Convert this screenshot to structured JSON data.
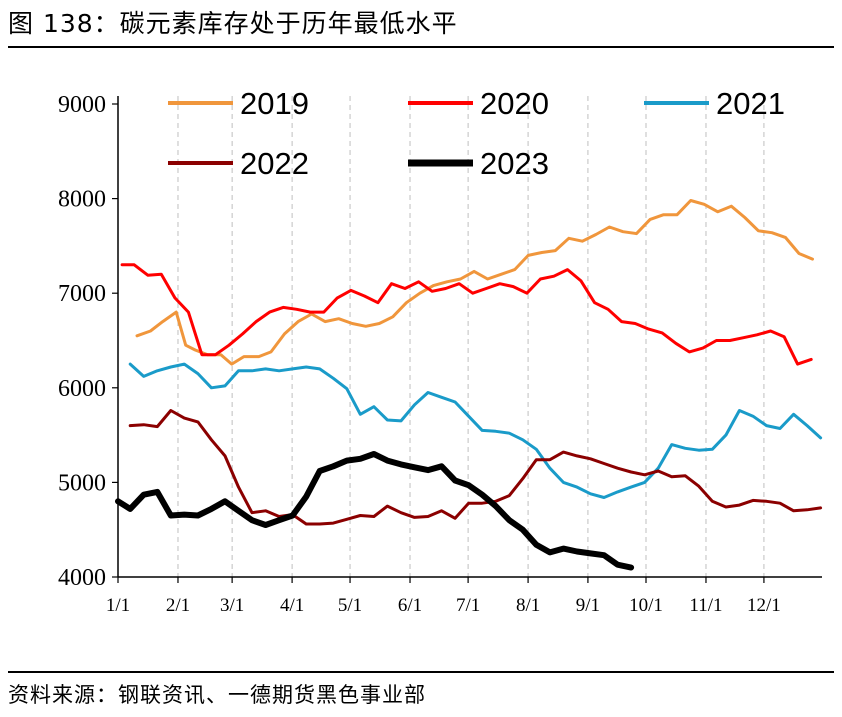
{
  "title": "图 138：碳元素库存处于历年最低水平",
  "source": "资料来源：钢联资讯、一德期货黑色事业部",
  "chart_data": {
    "type": "line",
    "xlabel": "",
    "ylabel": "",
    "x_domain": [
      0,
      52
    ],
    "ylim": [
      4000,
      9000
    ],
    "y_ticks": [
      4000,
      5000,
      6000,
      7000,
      8000,
      9000
    ],
    "x_ticks": [
      {
        "label": "1/1",
        "week": 0
      },
      {
        "label": "2/1",
        "week": 4.43
      },
      {
        "label": "3/1",
        "week": 8.43
      },
      {
        "label": "4/1",
        "week": 12.86
      },
      {
        "label": "5/1",
        "week": 17.14
      },
      {
        "label": "6/1",
        "week": 21.57
      },
      {
        "label": "7/1",
        "week": 25.86
      },
      {
        "label": "8/1",
        "week": 30.29
      },
      {
        "label": "9/1",
        "week": 34.71
      },
      {
        "label": "10/1",
        "week": 39
      },
      {
        "label": "11/1",
        "week": 43.43
      },
      {
        "label": "12/1",
        "week": 47.71
      }
    ],
    "grid": "vertical dashed",
    "legend": "top",
    "series": [
      {
        "name": "2019",
        "color": "#F0963C",
        "width": 3,
        "x": [
          1.4,
          2.4,
          3.3,
          4.3,
          5,
          5.7,
          6.6,
          7.6,
          8.4,
          9.3,
          10.4,
          11.3,
          12.3,
          13.3,
          14.3,
          15.3,
          16.3,
          17.3,
          18.3,
          19.3,
          20.3,
          21.3,
          22.3,
          23.3,
          24.3,
          25.3,
          26.3,
          27.3,
          28.3,
          29.3,
          30.3,
          31.3,
          32.3,
          33.3,
          34.3,
          35.3,
          36.3,
          37.3,
          38.3,
          39.3,
          40.3,
          41.3,
          42.3,
          43.3,
          44.3,
          45.3,
          46.3,
          47.3,
          48.3,
          49.3,
          50.3,
          51.3
        ],
        "values": [
          6550,
          6600,
          6700,
          6800,
          6450,
          6400,
          6350,
          6350,
          6250,
          6330,
          6330,
          6380,
          6570,
          6700,
          6780,
          6700,
          6730,
          6680,
          6650,
          6680,
          6750,
          6900,
          7000,
          7080,
          7120,
          7150,
          7230,
          7150,
          7200,
          7250,
          7400,
          7430,
          7450,
          7580,
          7550,
          7620,
          7700,
          7650,
          7630,
          7780,
          7830,
          7830,
          7980,
          7940,
          7860,
          7920,
          7800,
          7660,
          7640,
          7590,
          7420,
          7360
        ]
      },
      {
        "name": "2020",
        "color": "#FF0000",
        "width": 3,
        "x": [
          0.3,
          1.2,
          2.2,
          3.2,
          4.2,
          5.2,
          6.2,
          7.2,
          8.2,
          9.2,
          10.2,
          11.2,
          12.2,
          13.2,
          14.2,
          15.2,
          16.2,
          17.2,
          18.2,
          19.2,
          20.2,
          21.2,
          22.2,
          23.2,
          24.2,
          25.2,
          26.2,
          27.2,
          28.2,
          29.2,
          30.2,
          31.2,
          32.2,
          33.2,
          34.2,
          35.2,
          36.2,
          37.2,
          38.2,
          39.2,
          40.2,
          41.2,
          42.2,
          43.2,
          44.2,
          45.2,
          46.2,
          47.2,
          48.2,
          49.2,
          50.2,
          51.2
        ],
        "values": [
          7300,
          7300,
          7190,
          7200,
          6950,
          6800,
          6350,
          6350,
          6450,
          6570,
          6700,
          6800,
          6850,
          6830,
          6800,
          6800,
          6950,
          7030,
          6970,
          6900,
          7100,
          7050,
          7120,
          7020,
          7050,
          7100,
          7000,
          7050,
          7100,
          7070,
          7000,
          7150,
          7180,
          7250,
          7130,
          6900,
          6830,
          6700,
          6680,
          6620,
          6580,
          6470,
          6380,
          6420,
          6500,
          6500,
          6530,
          6560,
          6600,
          6540,
          6250,
          6300
        ]
      },
      {
        "name": "2021",
        "color": "#1A9BC9",
        "width": 3,
        "x": [
          0.9,
          1.9,
          2.9,
          3.9,
          4.9,
          5.9,
          6.9,
          7.9,
          8.9,
          9.9,
          10.9,
          11.9,
          12.9,
          13.9,
          14.9,
          15.9,
          16.9,
          17.9,
          18.9,
          19.9,
          20.9,
          21.9,
          22.9,
          23.9,
          24.9,
          25.9,
          26.9,
          27.9,
          28.9,
          29.9,
          30.9,
          31.9,
          32.9,
          33.9,
          34.9,
          35.9,
          36.9,
          37.9,
          38.9,
          39.9,
          40.9,
          41.9,
          42.9,
          43.9,
          44.9,
          45.9,
          46.9,
          47.9,
          48.9,
          49.9,
          50.9,
          51.9
        ],
        "values": [
          6250,
          6120,
          6180,
          6220,
          6250,
          6150,
          6000,
          6020,
          6180,
          6180,
          6200,
          6180,
          6200,
          6220,
          6200,
          6100,
          5990,
          5720,
          5800,
          5660,
          5650,
          5820,
          5950,
          5900,
          5850,
          5700,
          5550,
          5540,
          5520,
          5450,
          5350,
          5150,
          5000,
          4950,
          4880,
          4840,
          4900,
          4950,
          5000,
          5150,
          5400,
          5360,
          5340,
          5350,
          5500,
          5760,
          5700,
          5600,
          5570,
          5720,
          5600,
          5470
        ]
      },
      {
        "name": "2022",
        "color": "#8B0000",
        "width": 3,
        "x": [
          0.9,
          1.9,
          2.9,
          3.9,
          4.9,
          5.9,
          6.9,
          7.9,
          8.9,
          9.9,
          10.9,
          11.9,
          12.9,
          13.9,
          14.9,
          15.9,
          16.9,
          17.9,
          18.9,
          19.9,
          20.9,
          21.9,
          22.9,
          23.9,
          24.9,
          25.9,
          26.9,
          27.9,
          28.9,
          29.9,
          30.9,
          31.9,
          32.9,
          33.9,
          34.9,
          35.9,
          36.9,
          37.9,
          38.9,
          39.9,
          40.9,
          41.9,
          42.9,
          43.9,
          44.9,
          45.9,
          46.9,
          47.9,
          48.9,
          49.9,
          50.9,
          51.9
        ],
        "values": [
          5600,
          5610,
          5590,
          5760,
          5680,
          5640,
          5450,
          5280,
          4950,
          4680,
          4700,
          4640,
          4660,
          4560,
          4560,
          4570,
          4610,
          4650,
          4640,
          4750,
          4680,
          4630,
          4640,
          4700,
          4620,
          4780,
          4780,
          4800,
          4860,
          5040,
          5240,
          5240,
          5320,
          5280,
          5250,
          5200,
          5150,
          5110,
          5080,
          5120,
          5060,
          5070,
          4960,
          4800,
          4740,
          4760,
          4810,
          4800,
          4780,
          4700,
          4710,
          4730
        ]
      },
      {
        "name": "2023",
        "color": "#000000",
        "width": 6,
        "x": [
          0,
          0.9,
          1.9,
          2.9,
          3.9,
          4.9,
          5.9,
          6.9,
          7.9,
          8.9,
          9.9,
          10.9,
          11.9,
          12.9,
          13.9,
          14.9,
          15.9,
          16.9,
          17.9,
          18.9,
          19.9,
          20.9,
          21.9,
          22.9,
          23.9,
          24.9,
          25.9,
          26.9,
          27.9,
          28.9,
          29.9,
          30.9,
          31.9,
          32.9,
          33.9,
          34.9,
          35.9,
          36.9,
          37.9
        ],
        "values": [
          4800,
          4720,
          4870,
          4900,
          4650,
          4660,
          4650,
          4720,
          4800,
          4700,
          4600,
          4550,
          4600,
          4650,
          4850,
          5120,
          5170,
          5230,
          5250,
          5300,
          5230,
          5190,
          5160,
          5130,
          5170,
          5020,
          4970,
          4870,
          4750,
          4600,
          4500,
          4340,
          4260,
          4300,
          4270,
          4250,
          4230,
          4130,
          4100
        ]
      }
    ]
  }
}
